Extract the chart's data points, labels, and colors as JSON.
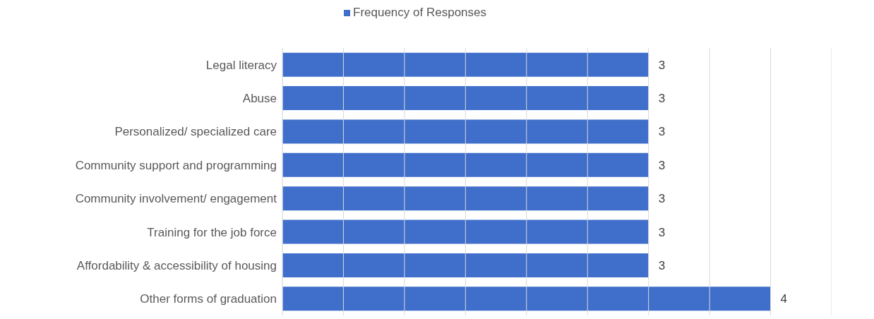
{
  "chart_data": {
    "type": "bar",
    "orientation": "horizontal",
    "categories": [
      "Legal literacy",
      "Abuse",
      "Personalized/ specialized care",
      "Community support and programming",
      "Community involvement/ engagement",
      "Training for the job force",
      "Affordability & accessibility of housing",
      "Other forms of graduation"
    ],
    "series": [
      {
        "name": "Frequency of Responses",
        "color": "#3f6fca",
        "values": [
          3,
          3,
          3,
          3,
          3,
          3,
          3,
          4
        ]
      }
    ],
    "xlim": [
      0,
      4.5
    ],
    "xticks": [
      {
        "value": 0,
        "label": null
      },
      {
        "value": 0.5,
        "label": null
      },
      {
        "value": 1,
        "label": null
      },
      {
        "value": 1.5,
        "label": null
      },
      {
        "value": 2,
        "label": null
      },
      {
        "value": 2.5,
        "label": null
      },
      {
        "value": 3,
        "label": null
      },
      {
        "value": 3.5,
        "label": null
      },
      {
        "value": 4,
        "label": null
      },
      {
        "value": 4.5,
        "label": null
      }
    ],
    "grid": "x",
    "legend": "top",
    "tick_labels": "y",
    "data_labels": true
  }
}
